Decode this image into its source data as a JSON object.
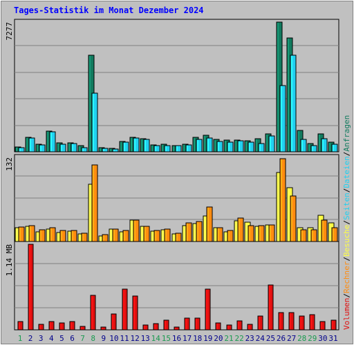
{
  "title": "Tages-Statistik im Monat Dezember 2024",
  "colors": {
    "anfragen": "#127b5f",
    "dateien": "#22d0f0",
    "seiten": "#22d0f0",
    "besuche": "#ffff44",
    "rechner": "#ff8c10",
    "volumen": "#e01010",
    "weekend_day": "#1a9a50",
    "weekday": "#00008b",
    "separator": "#000000"
  },
  "chart_data": [
    {
      "type": "bar",
      "panel": "top",
      "max_label": "7277",
      "ylim": [
        0,
        7277
      ],
      "legend": [
        "Anfragen",
        "Dateien"
      ],
      "categories": [
        "1",
        "2",
        "3",
        "4",
        "5",
        "6",
        "7",
        "8",
        "9",
        "10",
        "11",
        "12",
        "13",
        "14",
        "15",
        "16",
        "17",
        "18",
        "19",
        "20",
        "21",
        "22",
        "23",
        "24",
        "25",
        "26",
        "27",
        "28",
        "29",
        "30",
        "31"
      ],
      "series": [
        {
          "name": "Anfragen",
          "values": [
            290,
            810,
            440,
            1150,
            500,
            500,
            360,
            5430,
            250,
            200,
            580,
            830,
            740,
            400,
            410,
            350,
            430,
            800,
            920,
            710,
            660,
            660,
            620,
            730,
            1000,
            7270,
            6400,
            1200,
            480,
            990,
            530
          ]
        },
        {
          "name": "Dateien",
          "values": [
            250,
            770,
            370,
            1110,
            420,
            470,
            220,
            3300,
            180,
            140,
            540,
            760,
            710,
            350,
            330,
            340,
            380,
            690,
            760,
            580,
            530,
            600,
            560,
            450,
            880,
            3720,
            5400,
            710,
            360,
            720,
            440
          ]
        }
      ]
    },
    {
      "type": "bar",
      "panel": "middle",
      "max_label": "132",
      "ylim": [
        0,
        132
      ],
      "legend": [
        "Seiten",
        "Besuche",
        "Rechner"
      ],
      "categories": [
        "1",
        "2",
        "3",
        "4",
        "5",
        "6",
        "7",
        "8",
        "9",
        "10",
        "11",
        "12",
        "13",
        "14",
        "15",
        "16",
        "17",
        "18",
        "19",
        "20",
        "21",
        "22",
        "23",
        "24",
        "25",
        "26",
        "27",
        "28",
        "29",
        "30",
        "31"
      ],
      "series": [
        {
          "name": "Besuche",
          "values": [
            22,
            24,
            15,
            20,
            14,
            16,
            12,
            90,
            9,
            19,
            15,
            33,
            24,
            16,
            18,
            12,
            25,
            28,
            40,
            22,
            15,
            32,
            30,
            24,
            26,
            108,
            84,
            22,
            22,
            41,
            29
          ]
        },
        {
          "name": "Rechner",
          "values": [
            23,
            25,
            18,
            22,
            17,
            17,
            13,
            120,
            11,
            20,
            17,
            33,
            24,
            17,
            19,
            13,
            29,
            31,
            54,
            22,
            17,
            37,
            25,
            25,
            26,
            130,
            71,
            18,
            18,
            34,
            22
          ]
        }
      ]
    },
    {
      "type": "bar",
      "panel": "bottom",
      "max_label": "1.14 MB",
      "ylim": [
        0,
        1.14
      ],
      "legend": [
        "Volumen"
      ],
      "categories": [
        "1",
        "2",
        "3",
        "4",
        "5",
        "6",
        "7",
        "8",
        "9",
        "10",
        "11",
        "12",
        "13",
        "14",
        "15",
        "16",
        "17",
        "18",
        "19",
        "20",
        "21",
        "22",
        "23",
        "24",
        "25",
        "26",
        "27",
        "28",
        "29",
        "30",
        "31"
      ],
      "series": [
        {
          "name": "Volumen",
          "values": [
            0.11,
            1.14,
            0.07,
            0.11,
            0.09,
            0.11,
            0.05,
            0.46,
            0.04,
            0.21,
            0.54,
            0.45,
            0.06,
            0.08,
            0.13,
            0.04,
            0.16,
            0.16,
            0.54,
            0.09,
            0.06,
            0.12,
            0.07,
            0.18,
            0.6,
            0.23,
            0.23,
            0.18,
            0.2,
            0.11,
            0.13
          ]
        }
      ]
    }
  ],
  "weekend_days": [
    1,
    7,
    8,
    14,
    15,
    21,
    22,
    28,
    29
  ],
  "separator": "/"
}
